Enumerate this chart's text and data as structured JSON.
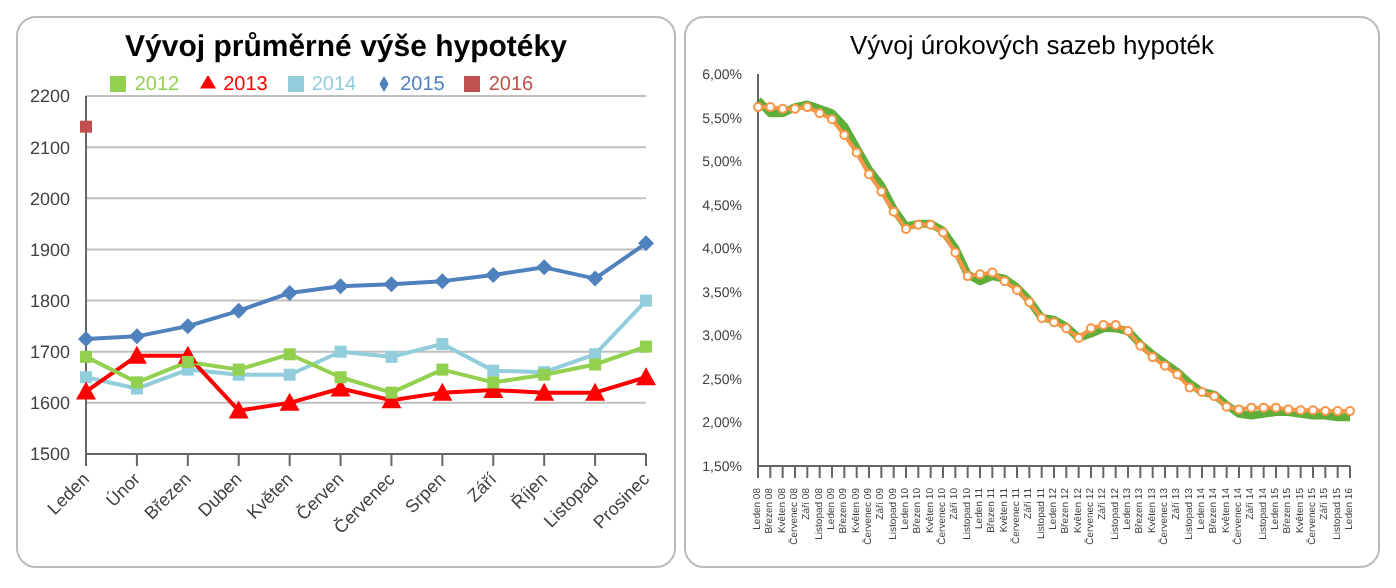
{
  "chart_data": [
    {
      "type": "line",
      "title": "Vývoj průměrné výše hypotéky",
      "categories": [
        "Leden",
        "Únor",
        "Březen",
        "Duben",
        "Květen",
        "Červen",
        "Červenec",
        "Srpen",
        "Září",
        "Říjen",
        "Listopad",
        "Prosinec"
      ],
      "series": [
        {
          "name": "2012",
          "color": "#92d050",
          "marker": "square",
          "values": [
            1690,
            1640,
            1680,
            1665,
            1695,
            1650,
            1620,
            1665,
            1640,
            1655,
            1675,
            1710
          ]
        },
        {
          "name": "2013",
          "color": "#ff0000",
          "marker": "triangle",
          "values": [
            1622,
            1692,
            1692,
            1585,
            1600,
            1628,
            1605,
            1620,
            1625,
            1620,
            1620,
            1650
          ]
        },
        {
          "name": "2014",
          "color": "#92cddc",
          "marker": "square",
          "values": [
            1650,
            1628,
            1665,
            1655,
            1655,
            1700,
            1690,
            1715,
            1663,
            1660,
            1695,
            1800
          ]
        },
        {
          "name": "2015",
          "color": "#4f81bd",
          "marker": "diamond",
          "values": [
            1725,
            1730,
            1750,
            1780,
            1815,
            1828,
            1832,
            1838,
            1850,
            1865,
            1843,
            1912
          ]
        },
        {
          "name": "2016",
          "color": "#c0504d",
          "marker": "square",
          "values": [
            2140,
            null,
            null,
            null,
            null,
            null,
            null,
            null,
            null,
            null,
            null,
            null
          ]
        }
      ],
      "ylim": [
        1500,
        2200
      ],
      "yticks": [
        1500,
        1600,
        1700,
        1800,
        1900,
        2000,
        2100,
        2200
      ],
      "grid": "y",
      "legend": "top"
    },
    {
      "type": "line",
      "title": "Vývoj úrokových sazeb hypoték",
      "categories": [
        "Leden 08",
        "Březen 08",
        "Květen 08",
        "Červenec 08",
        "Září 08",
        "Listopad 08",
        "Leden 09",
        "Březen 09",
        "Květen 09",
        "Červenec 09",
        "Září 09",
        "Listopad 09",
        "Leden 10",
        "Březen 10",
        "Květen 10",
        "Červenec 10",
        "Září 10",
        "Listopad 10",
        "Leden 11",
        "Březen 11",
        "Květen 11",
        "Červenec 11",
        "Září 11",
        "Listopad 11",
        "Leden 12",
        "Březen 12",
        "Květen 12",
        "Červenec 12",
        "Září 12",
        "Listopad 12",
        "Leden 13",
        "Březen 13",
        "Květen 13",
        "Červenec 13",
        "Září 13",
        "Listopad 13",
        "Leden 14",
        "Březen 14",
        "Květen 14",
        "Červenec 14",
        "Září 14",
        "Listopad 14",
        "Leden 15",
        "Březen 15",
        "Květen 15",
        "Červenec 15",
        "Září 15",
        "Listopad 15",
        "Leden 16"
      ],
      "series": [
        {
          "color": "#f79646",
          "marker": "circle",
          "values": [
            5.62,
            5.62,
            5.6,
            5.6,
            5.62,
            5.55,
            5.48,
            5.3,
            5.1,
            4.85,
            4.65,
            4.42,
            4.22,
            4.27,
            4.27,
            4.18,
            3.95,
            3.68,
            3.7,
            3.72,
            3.62,
            3.52,
            3.38,
            3.2,
            3.15,
            3.08,
            2.97,
            3.08,
            3.12,
            3.12,
            3.05,
            2.88,
            2.75,
            2.65,
            2.55,
            2.4,
            2.35,
            2.3,
            2.18,
            2.15,
            2.17,
            2.17,
            2.17,
            2.15,
            2.14,
            2.14,
            2.13,
            2.13,
            2.13
          ]
        },
        {
          "color": "#5fae3a",
          "marker": "none",
          "values": [
            5.7,
            5.55,
            5.55,
            5.62,
            5.65,
            5.6,
            5.55,
            5.4,
            5.15,
            4.9,
            4.72,
            4.45,
            4.25,
            4.28,
            4.28,
            4.2,
            4.0,
            3.7,
            3.62,
            3.68,
            3.65,
            3.55,
            3.4,
            3.2,
            3.18,
            3.1,
            2.97,
            3.02,
            3.08,
            3.08,
            3.05,
            2.9,
            2.78,
            2.68,
            2.58,
            2.45,
            2.35,
            2.32,
            2.2,
            2.1,
            2.08,
            2.1,
            2.12,
            2.12,
            2.1,
            2.08,
            2.08,
            2.06,
            2.06
          ]
        }
      ],
      "ylim": [
        1.5,
        6
      ],
      "yticks": [
        {
          "value": 1.5,
          "label": "1,50%"
        },
        {
          "value": 2,
          "label": "2,00%"
        },
        {
          "value": 2.5,
          "label": "2,50%"
        },
        {
          "value": 3,
          "label": "3,00%"
        },
        {
          "value": 3.5,
          "label": "3,50%"
        },
        {
          "value": 4,
          "label": "4,00%"
        },
        {
          "value": 4.5,
          "label": "4,50%"
        },
        {
          "value": 5,
          "label": "5,00%"
        },
        {
          "value": 5.5,
          "label": "5,50%"
        },
        {
          "value": 6,
          "label": "6,00%"
        }
      ]
    }
  ]
}
